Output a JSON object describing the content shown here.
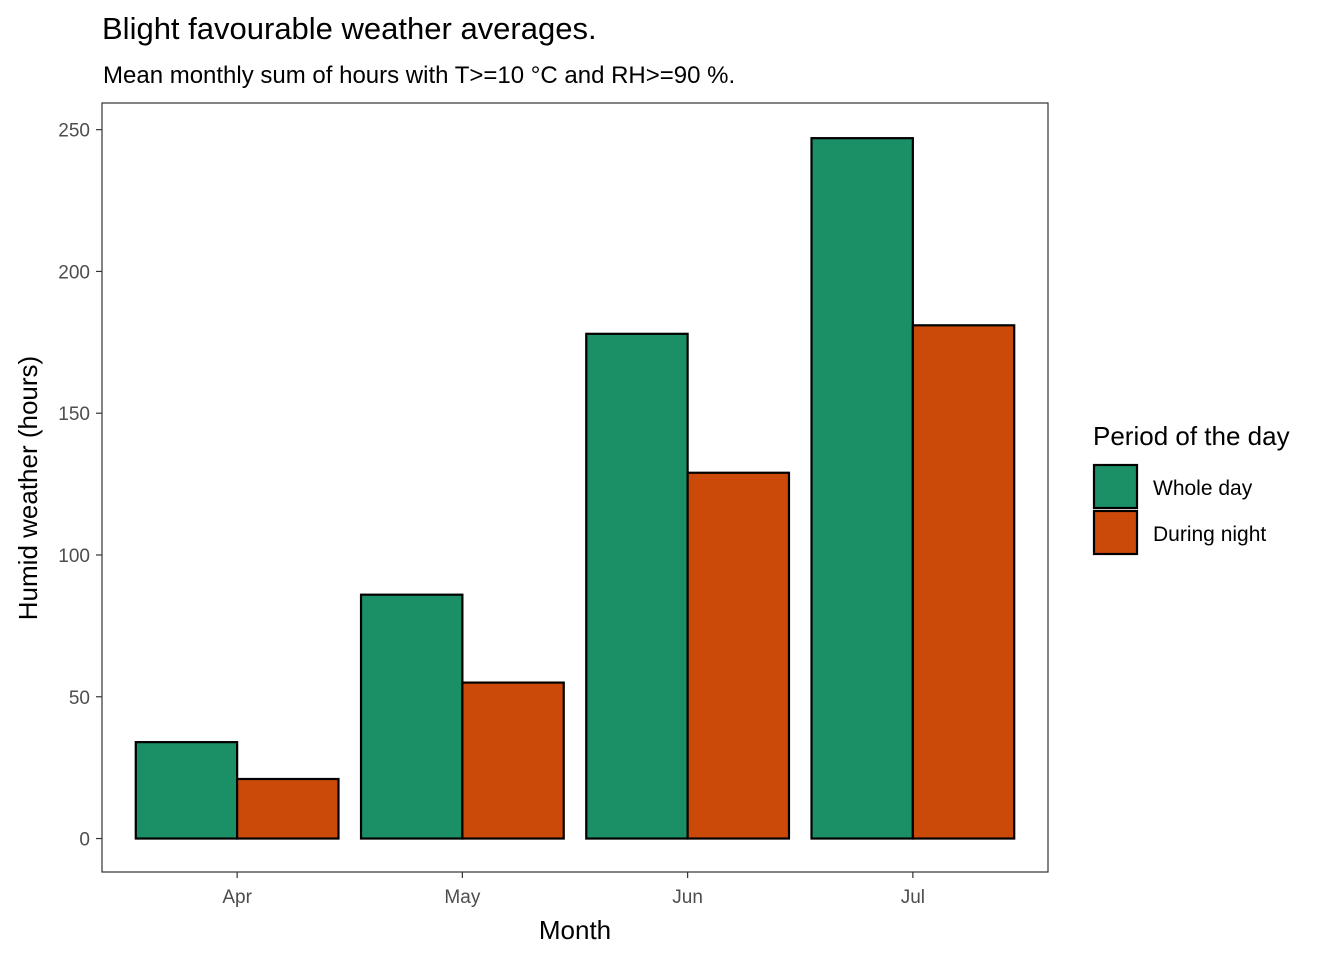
{
  "chart_data": {
    "type": "bar",
    "title": "Blight favourable weather averages.",
    "subtitle": "Mean monthly sum of hours with T>=10 °C and RH>=90 %.",
    "xlabel": "Month",
    "ylabel": "Humid weather (hours)",
    "categories": [
      "Apr",
      "May",
      "Jun",
      "Jul"
    ],
    "series": [
      {
        "name": "Whole day",
        "color": "#1b9066",
        "values": [
          34,
          86,
          178,
          247
        ]
      },
      {
        "name": "During night",
        "color": "#cc4a09",
        "values": [
          21,
          55,
          129,
          181
        ]
      }
    ],
    "ylim": [
      -11.8,
      259.4
    ],
    "yticks": [
      0,
      50,
      100,
      150,
      200,
      250
    ],
    "grid": false,
    "legend": {
      "title": "Period of the day",
      "position": "right"
    }
  }
}
